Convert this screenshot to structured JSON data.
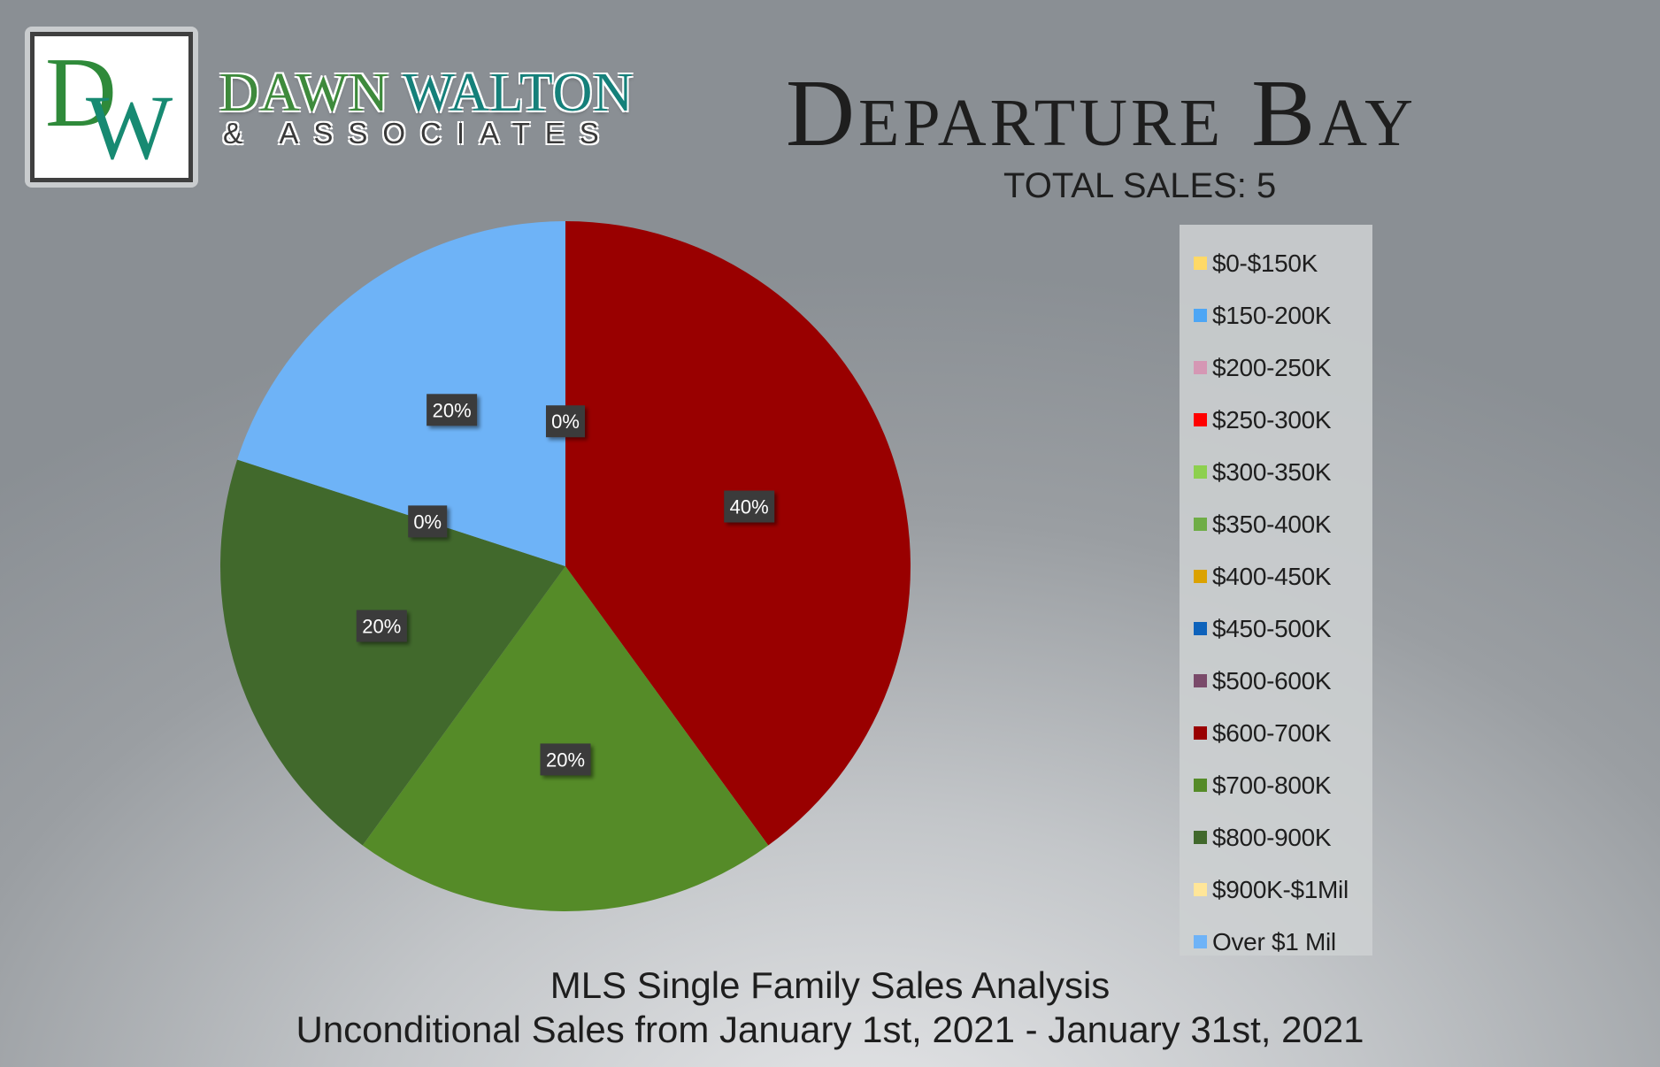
{
  "brand": {
    "logo_letter_d": "D",
    "logo_letter_w": "W",
    "name_first": "DAWN",
    "name_last": "WALTON",
    "sub": "& ASSOCIATES"
  },
  "header": {
    "title": "Departure Bay",
    "total_sales": "TOTAL SALES: 5"
  },
  "footer": {
    "line1": "MLS Single Family Sales Analysis",
    "line2": "Unconditional Sales from January 1st, 2021 - January 31st, 2021"
  },
  "chart_data": {
    "type": "pie",
    "legend_placement": "right",
    "categories": [
      "$0-$150K",
      "$150-200K",
      "$200-250K",
      "$250-300K",
      "$300-350K",
      "$350-400K",
      "$400-450K",
      "$450-500K",
      "$500-600K",
      "$600-700K",
      "$700-800K",
      "$800-900K",
      "$900K-$1Mil",
      "Over $1 Mil"
    ],
    "values": [
      0,
      0,
      0,
      0,
      0,
      0,
      0,
      0,
      0,
      40,
      20,
      20,
      0,
      20
    ],
    "colors": [
      "#ffd966",
      "#4da6f5",
      "#d597b4",
      "#ff0000",
      "#8dd04f",
      "#6fad46",
      "#dba200",
      "#0d62bb",
      "#7a4a6a",
      "#990000",
      "#558b28",
      "#41692c",
      "#ffe699",
      "#6eb3f7"
    ],
    "data_labels": [
      {
        "text": "0%",
        "category": "$500-600K"
      },
      {
        "text": "40%",
        "category": "$600-700K"
      },
      {
        "text": "20%",
        "category": "$700-800K"
      },
      {
        "text": "20%",
        "category": "$800-900K"
      },
      {
        "text": "0%",
        "category": "$900K-$1Mil"
      },
      {
        "text": "20%",
        "category": "Over $1 Mil"
      }
    ]
  }
}
